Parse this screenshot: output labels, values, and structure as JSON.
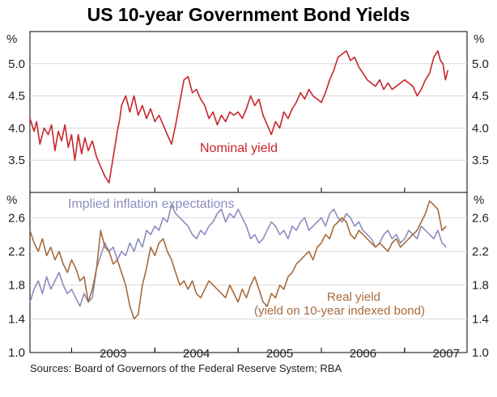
{
  "chart_data": [
    {
      "type": "line",
      "title": "US 10-year Government Bond Yields",
      "unit": "%",
      "ylim": [
        3.0,
        5.5
      ],
      "yticks": [
        "3.5",
        "4.0",
        "4.5",
        "5.0"
      ],
      "x_range": [
        2002.5,
        2007.75
      ],
      "series": [
        {
          "name": "Nominal yield",
          "color": "#c8252c",
          "x": [
            2002.5,
            2002.55,
            2002.58,
            2002.62,
            2002.67,
            2002.72,
            2002.76,
            2002.8,
            2002.84,
            2002.88,
            2002.92,
            2002.96,
            2003.0,
            2003.04,
            2003.08,
            2003.12,
            2003.16,
            2003.2,
            2003.25,
            2003.3,
            2003.35,
            2003.4,
            2003.45,
            2003.5,
            2003.55,
            2003.58,
            2003.6,
            2003.65,
            2003.7,
            2003.75,
            2003.8,
            2003.85,
            2003.9,
            2003.95,
            2004.0,
            2004.05,
            2004.1,
            2004.15,
            2004.2,
            2004.25,
            2004.3,
            2004.35,
            2004.4,
            2004.45,
            2004.5,
            2004.55,
            2004.6,
            2004.65,
            2004.7,
            2004.75,
            2004.8,
            2004.85,
            2004.9,
            2004.95,
            2005.0,
            2005.05,
            2005.1,
            2005.15,
            2005.2,
            2005.25,
            2005.3,
            2005.35,
            2005.4,
            2005.45,
            2005.5,
            2005.55,
            2005.6,
            2005.65,
            2005.7,
            2005.75,
            2005.8,
            2005.85,
            2005.9,
            2005.95,
            2006.0,
            2006.05,
            2006.1,
            2006.15,
            2006.2,
            2006.25,
            2006.3,
            2006.35,
            2006.4,
            2006.45,
            2006.5,
            2006.55,
            2006.6,
            2006.65,
            2006.7,
            2006.75,
            2006.8,
            2006.85,
            2006.9,
            2006.95,
            2007.0,
            2007.05,
            2007.1,
            2007.15,
            2007.2,
            2007.25,
            2007.3,
            2007.35,
            2007.4,
            2007.43,
            2007.46,
            2007.49,
            2007.52
          ],
          "y": [
            4.15,
            3.95,
            4.1,
            3.75,
            4.0,
            3.9,
            4.05,
            3.65,
            3.95,
            3.8,
            4.05,
            3.7,
            3.9,
            3.5,
            3.9,
            3.6,
            3.85,
            3.65,
            3.8,
            3.55,
            3.4,
            3.25,
            3.15,
            3.55,
            3.95,
            4.15,
            4.35,
            4.5,
            4.25,
            4.5,
            4.2,
            4.35,
            4.15,
            4.3,
            4.1,
            4.2,
            4.05,
            3.9,
            3.75,
            4.05,
            4.4,
            4.75,
            4.8,
            4.55,
            4.6,
            4.45,
            4.35,
            4.15,
            4.25,
            4.05,
            4.2,
            4.1,
            4.25,
            4.2,
            4.25,
            4.15,
            4.3,
            4.5,
            4.35,
            4.45,
            4.2,
            4.05,
            3.9,
            4.1,
            4.0,
            4.25,
            4.15,
            4.3,
            4.4,
            4.55,
            4.45,
            4.6,
            4.5,
            4.45,
            4.4,
            4.55,
            4.75,
            4.9,
            5.1,
            5.15,
            5.2,
            5.05,
            5.1,
            4.95,
            4.85,
            4.75,
            4.7,
            4.65,
            4.75,
            4.6,
            4.7,
            4.6,
            4.65,
            4.7,
            4.75,
            4.7,
            4.65,
            4.5,
            4.6,
            4.75,
            4.85,
            5.1,
            5.2,
            5.05,
            5.0,
            4.75,
            4.9
          ]
        }
      ],
      "annotations": [
        "Nominal yield"
      ]
    },
    {
      "type": "line",
      "unit": "%",
      "ylim": [
        1.0,
        2.9
      ],
      "yticks": [
        "1.0",
        "1.4",
        "1.8",
        "2.2",
        "2.6"
      ],
      "x_range": [
        2002.5,
        2007.75
      ],
      "xticks": [
        "2003",
        "2004",
        "2005",
        "2006",
        "2007"
      ],
      "series": [
        {
          "name": "Implied inflation expectations",
          "color": "#8c8cbf",
          "x": [
            2002.5,
            2002.55,
            2002.6,
            2002.65,
            2002.7,
            2002.75,
            2002.8,
            2002.85,
            2002.9,
            2002.95,
            2003.0,
            2003.05,
            2003.1,
            2003.15,
            2003.2,
            2003.25,
            2003.3,
            2003.35,
            2003.4,
            2003.45,
            2003.5,
            2003.55,
            2003.6,
            2003.65,
            2003.7,
            2003.75,
            2003.8,
            2003.85,
            2003.9,
            2003.95,
            2004.0,
            2004.05,
            2004.1,
            2004.15,
            2004.2,
            2004.25,
            2004.3,
            2004.35,
            2004.4,
            2004.45,
            2004.5,
            2004.55,
            2004.6,
            2004.65,
            2004.7,
            2004.75,
            2004.8,
            2004.85,
            2004.9,
            2004.95,
            2005.0,
            2005.05,
            2005.1,
            2005.15,
            2005.2,
            2005.25,
            2005.3,
            2005.35,
            2005.4,
            2005.45,
            2005.5,
            2005.55,
            2005.6,
            2005.65,
            2005.7,
            2005.75,
            2005.8,
            2005.85,
            2005.9,
            2005.95,
            2006.0,
            2006.05,
            2006.1,
            2006.15,
            2006.2,
            2006.25,
            2006.3,
            2006.35,
            2006.4,
            2006.45,
            2006.5,
            2006.55,
            2006.6,
            2006.65,
            2006.7,
            2006.75,
            2006.8,
            2006.85,
            2006.9,
            2006.95,
            2007.0,
            2007.05,
            2007.1,
            2007.15,
            2007.2,
            2007.25,
            2007.3,
            2007.35,
            2007.4,
            2007.45,
            2007.5
          ],
          "y": [
            1.6,
            1.75,
            1.85,
            1.7,
            1.9,
            1.75,
            1.85,
            1.95,
            1.8,
            1.7,
            1.75,
            1.65,
            1.55,
            1.7,
            1.6,
            1.65,
            2.0,
            2.15,
            2.3,
            2.2,
            2.25,
            2.1,
            2.2,
            2.15,
            2.3,
            2.2,
            2.35,
            2.25,
            2.45,
            2.4,
            2.5,
            2.45,
            2.6,
            2.55,
            2.75,
            2.65,
            2.6,
            2.55,
            2.5,
            2.4,
            2.35,
            2.45,
            2.4,
            2.5,
            2.55,
            2.65,
            2.7,
            2.55,
            2.65,
            2.6,
            2.7,
            2.6,
            2.5,
            2.35,
            2.4,
            2.3,
            2.35,
            2.45,
            2.55,
            2.5,
            2.4,
            2.45,
            2.35,
            2.5,
            2.45,
            2.55,
            2.6,
            2.45,
            2.5,
            2.55,
            2.6,
            2.5,
            2.65,
            2.7,
            2.6,
            2.55,
            2.65,
            2.6,
            2.5,
            2.55,
            2.45,
            2.4,
            2.35,
            2.25,
            2.3,
            2.4,
            2.45,
            2.35,
            2.4,
            2.3,
            2.35,
            2.45,
            2.4,
            2.35,
            2.5,
            2.45,
            2.4,
            2.35,
            2.45,
            2.3,
            2.25
          ]
        },
        {
          "name": "Real yield",
          "color": "#a86a3a",
          "x": [
            2002.5,
            2002.55,
            2002.6,
            2002.65,
            2002.7,
            2002.75,
            2002.8,
            2002.85,
            2002.9,
            2002.95,
            2003.0,
            2003.05,
            2003.1,
            2003.15,
            2003.2,
            2003.25,
            2003.3,
            2003.35,
            2003.4,
            2003.45,
            2003.5,
            2003.55,
            2003.6,
            2003.65,
            2003.7,
            2003.75,
            2003.8,
            2003.85,
            2003.9,
            2003.95,
            2004.0,
            2004.05,
            2004.1,
            2004.15,
            2004.2,
            2004.25,
            2004.3,
            2004.35,
            2004.4,
            2004.45,
            2004.5,
            2004.55,
            2004.6,
            2004.65,
            2004.7,
            2004.75,
            2004.8,
            2004.85,
            2004.9,
            2004.95,
            2005.0,
            2005.05,
            2005.1,
            2005.15,
            2005.2,
            2005.25,
            2005.3,
            2005.35,
            2005.4,
            2005.45,
            2005.5,
            2005.55,
            2005.6,
            2005.65,
            2005.7,
            2005.75,
            2005.8,
            2005.85,
            2005.9,
            2005.95,
            2006.0,
            2006.05,
            2006.1,
            2006.15,
            2006.2,
            2006.25,
            2006.3,
            2006.35,
            2006.4,
            2006.45,
            2006.5,
            2006.55,
            2006.6,
            2006.65,
            2006.7,
            2006.75,
            2006.8,
            2006.85,
            2006.9,
            2006.95,
            2007.0,
            2007.05,
            2007.1,
            2007.15,
            2007.2,
            2007.25,
            2007.3,
            2007.35,
            2007.4,
            2007.45,
            2007.5
          ],
          "y": [
            2.45,
            2.3,
            2.2,
            2.35,
            2.15,
            2.25,
            2.1,
            2.2,
            2.05,
            1.95,
            2.1,
            2.0,
            1.85,
            1.9,
            1.6,
            1.75,
            2.0,
            2.45,
            2.25,
            2.2,
            2.05,
            2.1,
            1.95,
            1.8,
            1.55,
            1.4,
            1.45,
            1.8,
            2.0,
            2.25,
            2.15,
            2.3,
            2.35,
            2.2,
            2.1,
            1.95,
            1.8,
            1.85,
            1.75,
            1.85,
            1.7,
            1.65,
            1.75,
            1.85,
            1.8,
            1.75,
            1.7,
            1.65,
            1.8,
            1.7,
            1.6,
            1.75,
            1.65,
            1.8,
            1.9,
            1.75,
            1.6,
            1.55,
            1.7,
            1.65,
            1.8,
            1.75,
            1.9,
            1.95,
            2.05,
            2.1,
            2.15,
            2.2,
            2.1,
            2.25,
            2.3,
            2.4,
            2.35,
            2.5,
            2.55,
            2.6,
            2.55,
            2.4,
            2.35,
            2.45,
            2.4,
            2.35,
            2.3,
            2.25,
            2.3,
            2.25,
            2.2,
            2.3,
            2.35,
            2.25,
            2.3,
            2.35,
            2.4,
            2.45,
            2.55,
            2.65,
            2.8,
            2.75,
            2.7,
            2.45,
            2.5
          ]
        }
      ],
      "annotations": [
        "Implied inflation expectations",
        "Real yield",
        "(yield on 10-year indexed bond)"
      ]
    }
  ],
  "footnote": "Sources: Board of Governors of the Federal Reserve System; RBA"
}
